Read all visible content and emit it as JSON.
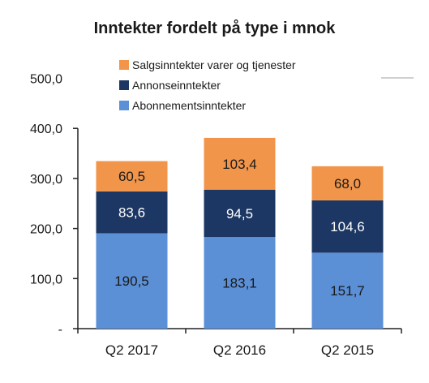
{
  "chart_data": {
    "type": "bar",
    "stacked": true,
    "title": "Inntekter fordelt på type i mnok",
    "categories": [
      "Q2 2017",
      "Q2 2016",
      "Q2 2015"
    ],
    "series": [
      {
        "name": "Abonnementsinntekter",
        "values": [
          190.5,
          183.1,
          151.7
        ],
        "labels": [
          "190,5",
          "183,1",
          "151,7"
        ],
        "color": "#5b8fd6"
      },
      {
        "name": "Annonseinntekter",
        "values": [
          83.6,
          94.5,
          104.6
        ],
        "labels": [
          "83,6",
          "94,5",
          "104,6"
        ],
        "color": "#1c3763"
      },
      {
        "name": "Salgsinntekter varer og tjenester",
        "values": [
          60.5,
          103.4,
          68.0
        ],
        "labels": [
          "60,5",
          "103,4",
          "68,0"
        ],
        "color": "#f0954a"
      }
    ],
    "ylim": [
      0,
      500
    ],
    "yticks": [
      0,
      100,
      200,
      300,
      400,
      500
    ],
    "ytick_labels": [
      "-",
      "100,0",
      "200,0",
      "300,0",
      "400,0",
      "500,0"
    ],
    "legend_position": "top",
    "grid": false
  }
}
